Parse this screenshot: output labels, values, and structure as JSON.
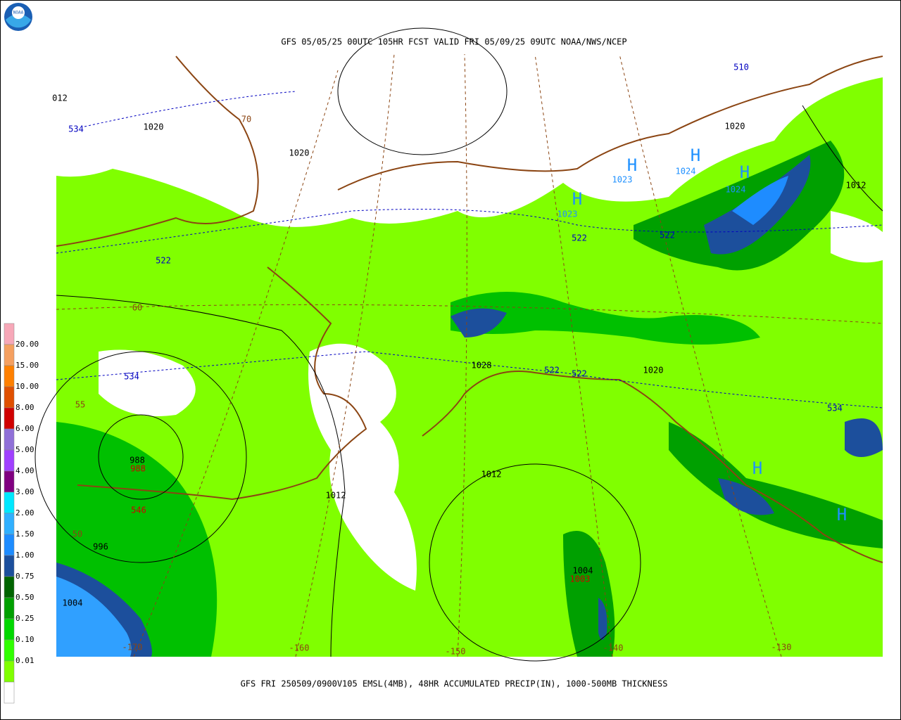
{
  "header": {
    "title": "GFS 05/05/25 00UTC 105HR FCST VALID FRI 05/09/25 09UTC NOAA/NWS/NCEP",
    "logo": "NOAA"
  },
  "legend": {
    "labels": [
      "20.00",
      "15.00",
      "10.00",
      "8.00",
      "6.00",
      "5.00",
      "4.00",
      "3.00",
      "2.00",
      "1.50",
      "1.00",
      "0.75",
      "0.50",
      "0.25",
      "0.10",
      "0.01"
    ],
    "colors": [
      "#f7a8b8",
      "#f5a060",
      "#ff8000",
      "#e05000",
      "#d00000",
      "#9070d8",
      "#a040ff",
      "#800080",
      "#00e8ff",
      "#30b0ff",
      "#1e8cff",
      "#1c4f9c",
      "#006400",
      "#00a000",
      "#00d800",
      "#30ff00",
      "#80ff00",
      "#ffffff"
    ]
  },
  "map": {
    "labels": [
      {
        "text": "012",
        "color": "#000"
      },
      {
        "text": "534",
        "color": "#0000c0"
      },
      {
        "text": "1020",
        "color": "#000"
      },
      {
        "text": "1020",
        "color": "#000"
      },
      {
        "text": "70",
        "color": "#8b4513"
      },
      {
        "text": "510",
        "color": "#0000c0"
      },
      {
        "text": "1020",
        "color": "#000"
      },
      {
        "text": "H",
        "color": "#1e90ff"
      },
      {
        "text": "1023",
        "color": "#1e90ff"
      },
      {
        "text": "H",
        "color": "#1e90ff"
      },
      {
        "text": "1024",
        "color": "#1e90ff"
      },
      {
        "text": "H",
        "color": "#1e90ff"
      },
      {
        "text": "1024",
        "color": "#1e90ff"
      },
      {
        "text": "H",
        "color": "#1e90ff"
      },
      {
        "text": "1023",
        "color": "#1e90ff"
      },
      {
        "text": "1012",
        "color": "#000"
      },
      {
        "text": "522",
        "color": "#0000c0"
      },
      {
        "text": "522",
        "color": "#0000c0"
      },
      {
        "text": "522",
        "color": "#0000c0"
      },
      {
        "text": "60",
        "color": "#8b4513"
      },
      {
        "text": "534",
        "color": "#0000c0"
      },
      {
        "text": "1028",
        "color": "#000"
      },
      {
        "text": "522",
        "color": "#0000c0"
      },
      {
        "text": "522",
        "color": "#0000c0"
      },
      {
        "text": "1020",
        "color": "#000"
      },
      {
        "text": "534",
        "color": "#0000c0"
      },
      {
        "text": "55",
        "color": "#8b4513"
      },
      {
        "text": "988",
        "color": "#000"
      },
      {
        "text": "988",
        "color": "#d00000"
      },
      {
        "text": "546",
        "color": "#d00000"
      },
      {
        "text": "1012",
        "color": "#000"
      },
      {
        "text": "1012",
        "color": "#000"
      },
      {
        "text": "50",
        "color": "#8b4513"
      },
      {
        "text": "996",
        "color": "#000"
      },
      {
        "text": "1004",
        "color": "#000"
      },
      {
        "text": "1003",
        "color": "#d00000"
      },
      {
        "text": "1004",
        "color": "#000"
      },
      {
        "text": "H",
        "color": "#1e90ff"
      },
      {
        "text": "H",
        "color": "#1e90ff"
      },
      {
        "text": "-170",
        "color": "#8b4513"
      },
      {
        "text": "-160",
        "color": "#8b4513"
      },
      {
        "text": "-150",
        "color": "#8b4513"
      },
      {
        "text": "-140",
        "color": "#8b4513"
      },
      {
        "text": "-130",
        "color": "#8b4513"
      }
    ]
  },
  "footer": {
    "caption": "GFS FRI 250509/0900V105 EMSL(4MB), 48HR ACCUMULATED PRECIP(IN), 1000-500MB THICKNESS"
  }
}
